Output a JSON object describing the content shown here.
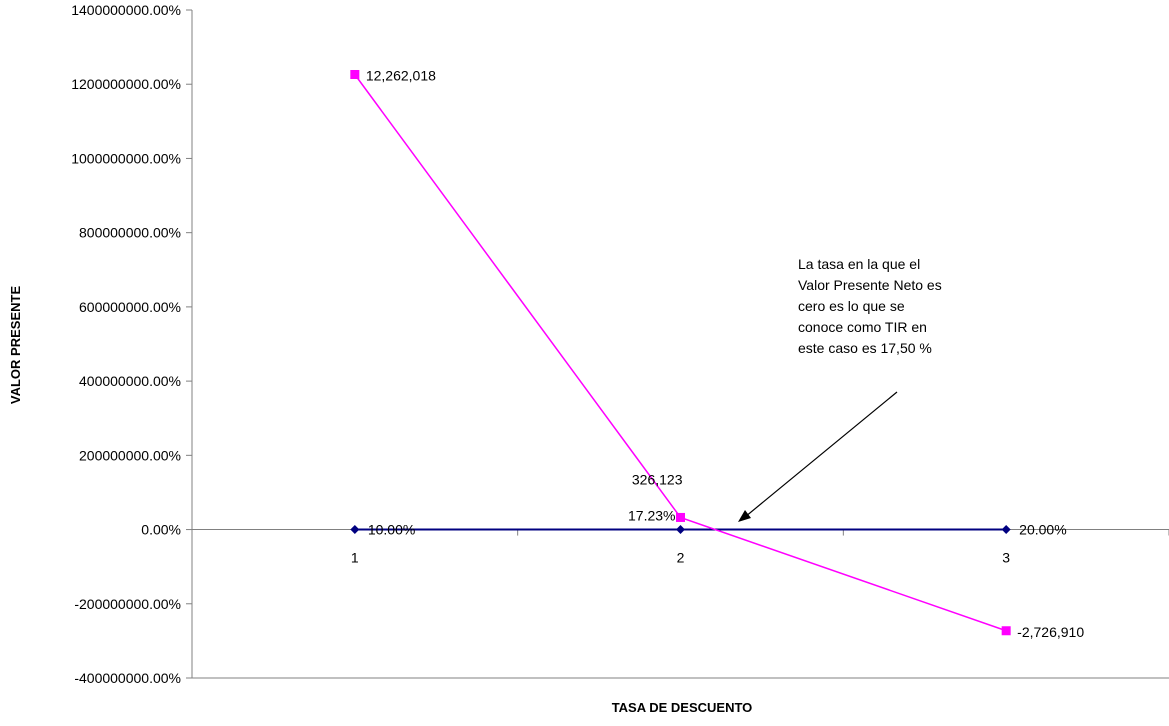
{
  "chart_data": {
    "type": "line",
    "title": "",
    "xlabel": "TASA DE DESCUENTO",
    "ylabel": "VALOR PRESENTE",
    "categories": [
      "1",
      "2",
      "3"
    ],
    "yticks": [
      "1400000000.00%",
      "1200000000.00%",
      "1000000000.00%",
      "800000000.00%",
      "600000000.00%",
      "400000000.00%",
      "200000000.00%",
      "0.00%",
      "-200000000.00%",
      "-400000000.00%"
    ],
    "ylim": [
      -4000000,
      14000000
    ],
    "grid": false,
    "legend": "none",
    "series": [
      {
        "values": [
          0.1,
          0.1723,
          0.2
        ],
        "labels": [
          "10.00%",
          "17.23%",
          "20.00%"
        ],
        "color": "#000080",
        "marker": "diamond"
      },
      {
        "values": [
          12262018,
          326123,
          -2726910
        ],
        "labels": [
          "12,262,018",
          "326,123",
          "-2,726,910"
        ],
        "color": "#FF00FF",
        "marker": "square"
      }
    ],
    "annotation": {
      "lines": [
        "La tasa en la que el",
        "Valor Presente Neto es",
        "cero es lo que se",
        "conoce como TIR en",
        "este caso es 17,50 %"
      ],
      "arrow": true
    }
  }
}
